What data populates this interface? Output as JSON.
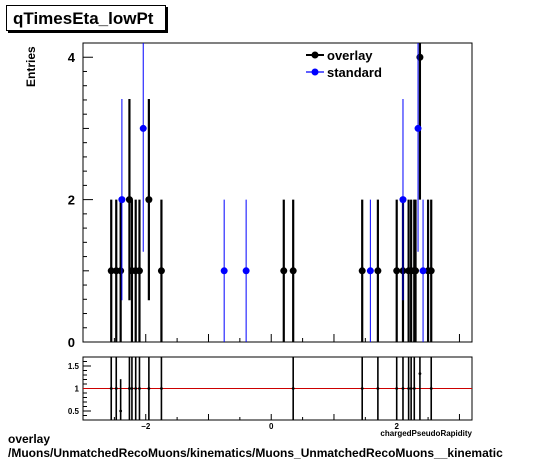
{
  "header": {
    "title": "qTimesEta_lowPt"
  },
  "footer": {
    "line1": "overlay",
    "line2": "/Muons/UnmatchedRecoMuons/kinematics/Muons_UnmatchedRecoMuons__kinematic"
  },
  "chart_data": [
    {
      "type": "scatter",
      "title": "qTimesEta_lowPt",
      "xlabel": "chargedPseudoRapidity",
      "ylabel": "Entries",
      "xlim": [
        -3,
        3.2
      ],
      "ylim": [
        0,
        4.2
      ],
      "yticks": [
        0,
        2,
        4
      ],
      "xticks": [
        -2,
        0,
        2
      ],
      "legend": {
        "placement": "top-right",
        "entries": [
          "overlay",
          "standard"
        ]
      },
      "colors": {
        "overlay": "#000000",
        "standard": "#0000ff"
      },
      "series": [
        {
          "name": "overlay",
          "x": [
            -2.55,
            -2.47,
            -2.4,
            -2.26,
            -2.22,
            -2.16,
            -2.1,
            -1.95,
            -1.75,
            0.2,
            0.35,
            1.45,
            1.7,
            2.0,
            2.1,
            2.19,
            2.23,
            2.28,
            2.3,
            2.37,
            2.5,
            2.55
          ],
          "y": [
            1,
            1,
            1,
            2,
            1,
            1,
            1,
            2,
            1,
            1,
            1,
            1,
            1,
            1,
            1,
            1,
            1,
            1,
            1,
            4,
            1,
            1
          ]
        },
        {
          "name": "standard",
          "x": [
            -2.38,
            -2.04,
            -0.75,
            -0.4,
            1.58,
            2.1,
            2.34,
            2.42
          ],
          "y": [
            2,
            3,
            1,
            1,
            1,
            2,
            3,
            1
          ]
        }
      ]
    },
    {
      "type": "scatter",
      "xlabel": "chargedPseudoRapidity",
      "ylabel": "",
      "xlim": [
        -3,
        3.2
      ],
      "ylim": [
        0.3,
        1.7
      ],
      "yticks": [
        0.5,
        1,
        1.5
      ],
      "xticks": [
        -2,
        0,
        2
      ],
      "reference_line": {
        "value": 1,
        "color": "#cc0000"
      },
      "series": [
        {
          "name": "",
          "x": [
            -2.55,
            -2.47,
            -2.4,
            -2.26,
            -2.22,
            -2.16,
            -2.1,
            -1.95,
            -1.75,
            0.35,
            1.45,
            1.7,
            2.0,
            2.1,
            2.19,
            2.23,
            2.28,
            2.37,
            2.55
          ],
          "y": [
            1,
            1,
            0.5,
            1,
            1,
            1,
            1,
            1,
            1,
            1,
            1,
            1,
            1,
            1,
            1,
            1,
            1,
            1.33,
            1
          ]
        }
      ]
    }
  ]
}
